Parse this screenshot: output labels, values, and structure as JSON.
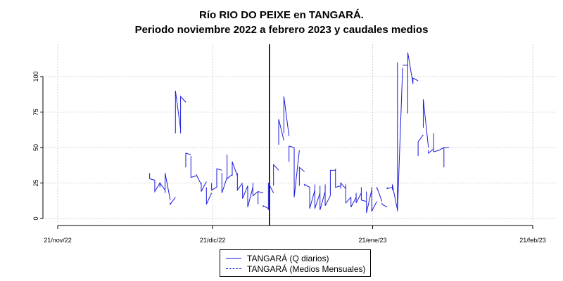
{
  "title_line1": "Río RIO DO PEIXE en TANGARÁ.",
  "title_line2": "Periodo noviembre 2022 a febrero 2023 y caudales medios",
  "colors": {
    "series": "#1a1adb",
    "vline": "#000000",
    "grid": "#d0d0d0"
  },
  "legend": {
    "entry1": "TANGARÁ (Q diarios)",
    "entry2": "TANGARÁ (Medios Mensuales)",
    "position": "bottom-center"
  },
  "chart_data": {
    "type": "line",
    "title": "Río RIO DO PEIXE en TANGARÁ. Periodo noviembre 2022 a febrero 2023 y caudales medios",
    "xlabel": "",
    "ylabel": "",
    "x_ticks": [
      "21/nov/22",
      "21/dic/22",
      "21/ene/23",
      "21/feb/23"
    ],
    "y_ticks": [
      0,
      25,
      50,
      75,
      100
    ],
    "ylim": [
      0,
      120
    ],
    "xlim_days": [
      0,
      92
    ],
    "grid": true,
    "vertical_line_day": 41,
    "series": [
      {
        "name": "TANGARÁ (Q diarios)",
        "style": "solid",
        "segments": [
          [
            17.8,
            32,
            28,
            27
          ],
          [
            18.8,
            27,
            19,
            25
          ],
          [
            19.8,
            22,
            25,
            20
          ],
          [
            20.8,
            18,
            32,
            13
          ],
          [
            21.8,
            11,
            10,
            15
          ],
          [
            22.8,
            60,
            90,
            63
          ],
          [
            23.8,
            60,
            86,
            82
          ],
          [
            24.8,
            36,
            46,
            45
          ],
          [
            25.8,
            44,
            29,
            30
          ],
          [
            26.8,
            31,
            31,
            24
          ],
          [
            27.8,
            25,
            19,
            26
          ],
          [
            28.8,
            22,
            10,
            18
          ],
          [
            29.8,
            25,
            20,
            22
          ],
          [
            30.8,
            22,
            35,
            34
          ],
          [
            31.8,
            32,
            18,
            29
          ],
          [
            32.8,
            45,
            28,
            31
          ],
          [
            33.8,
            30,
            40,
            30
          ],
          [
            34.8,
            32,
            20,
            25
          ],
          [
            35.8,
            24,
            14,
            23
          ],
          [
            36.8,
            23,
            8,
            22
          ],
          [
            37.8,
            25,
            16,
            19
          ],
          [
            38.8,
            10,
            19,
            18
          ],
          [
            39.8,
            8,
            9,
            7
          ],
          [
            40.8,
            6,
            25,
            18
          ],
          [
            41.8,
            23,
            38,
            34
          ],
          [
            42.8,
            52,
            70,
            55
          ],
          [
            43.8,
            60,
            86,
            58
          ],
          [
            44.8,
            40,
            51,
            50
          ],
          [
            45.8,
            50,
            15,
            48
          ],
          [
            46.8,
            23,
            36,
            33
          ],
          [
            47.8,
            23,
            24,
            22
          ],
          [
            48.8,
            22,
            7,
            20
          ],
          [
            49.8,
            24,
            7,
            18
          ],
          [
            50.8,
            23,
            6,
            19
          ],
          [
            51.8,
            24,
            9,
            16
          ],
          [
            52.8,
            16,
            34,
            34
          ],
          [
            53.8,
            35,
            22,
            23
          ],
          [
            54.8,
            21,
            25,
            21
          ],
          [
            55.8,
            24,
            11,
            15
          ],
          [
            56.8,
            15,
            8,
            15
          ],
          [
            57.8,
            18,
            11,
            18
          ],
          [
            58.8,
            22,
            13,
            12
          ],
          [
            59.8,
            19,
            4,
            20
          ],
          [
            60.8,
            22,
            5,
            12
          ],
          [
            61.8,
            21,
            22,
            12
          ],
          [
            62.8,
            11,
            10,
            8
          ],
          [
            63.8,
            22,
            21,
            22
          ],
          [
            64.8,
            20,
            24,
            6
          ],
          [
            65.8,
            110,
            5,
            106
          ],
          [
            66.8,
            108,
            108,
            108
          ],
          [
            67.8,
            74,
            117,
            95
          ],
          [
            68.8,
            95,
            99,
            97
          ],
          [
            69.8,
            44,
            54,
            59
          ],
          [
            70.8,
            64,
            84,
            50
          ],
          [
            71.8,
            48,
            46,
            49
          ],
          [
            72.8,
            60,
            47,
            48
          ],
          [
            73.8,
            48,
            48,
            50
          ],
          [
            74.8,
            36,
            50,
            50
          ]
        ]
      },
      {
        "name": "TANGARÁ (Medios Mensuales)",
        "style": "dashed",
        "values": []
      }
    ]
  }
}
